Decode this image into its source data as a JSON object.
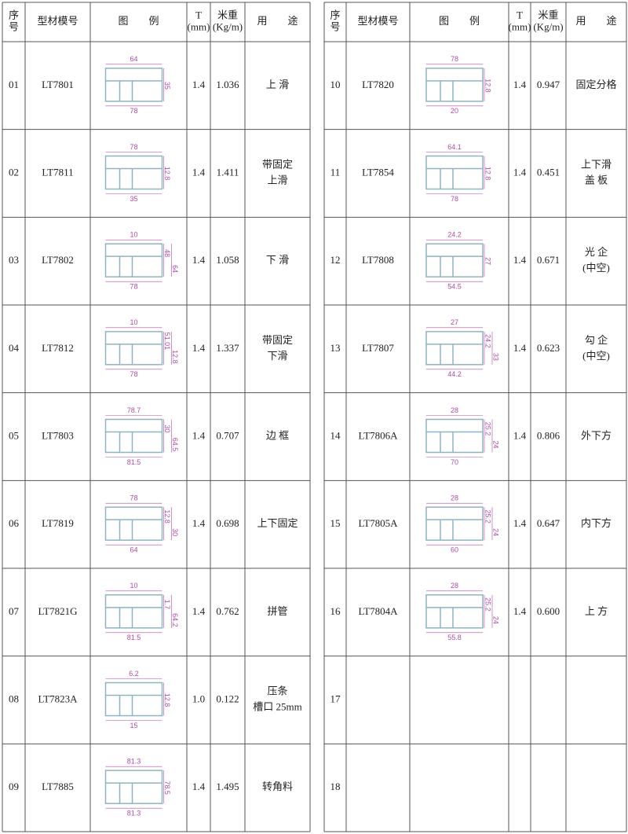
{
  "header": [
    [
      "序",
      "号"
    ],
    [
      "型材模号"
    ],
    [
      "图　　例"
    ],
    [
      "T",
      "(mm)"
    ],
    [
      "米重",
      "(Kg/m)"
    ],
    [
      "用　　途"
    ]
  ],
  "left": {
    "rows": [
      {
        "no": "01",
        "model": "LT7801",
        "t": "1.4",
        "weight": "1.036",
        "use": [
          "上 滑"
        ],
        "dims": [
          "64",
          "35",
          "78"
        ]
      },
      {
        "no": "02",
        "model": "LT7811",
        "t": "1.4",
        "weight": "1.411",
        "use": [
          "带固定",
          "上滑"
        ],
        "dims": [
          "78",
          "12.8",
          "35"
        ]
      },
      {
        "no": "03",
        "model": "LT7802",
        "t": "1.4",
        "weight": "1.058",
        "use": [
          "下 滑"
        ],
        "dims": [
          "10",
          "48",
          "64",
          "78"
        ]
      },
      {
        "no": "04",
        "model": "LT7812",
        "t": "1.4",
        "weight": "1.337",
        "use": [
          "带固定",
          "下滑"
        ],
        "dims": [
          "10",
          "51.01",
          "12.8",
          "78"
        ]
      },
      {
        "no": "05",
        "model": "LT7803",
        "t": "1.4",
        "weight": "0.707",
        "use": [
          "边 框"
        ],
        "dims": [
          "78.7",
          "30",
          "64.5",
          "81.5"
        ]
      },
      {
        "no": "06",
        "model": "LT7819",
        "t": "1.4",
        "weight": "0.698",
        "use": [
          "上下固定"
        ],
        "dims": [
          "78",
          "12.8",
          "30",
          "64"
        ]
      },
      {
        "no": "07",
        "model": "LT7821G",
        "t": "1.4",
        "weight": "0.762",
        "use": [
          "拼管"
        ],
        "dims": [
          "10",
          "1.7",
          "64.2",
          "81.5"
        ]
      },
      {
        "no": "08",
        "model": "LT7823A",
        "t": "1.0",
        "weight": "0.122",
        "use": [
          "压条",
          "槽口 25mm"
        ],
        "dims": [
          "6.2",
          "12.8",
          "15"
        ]
      },
      {
        "no": "09",
        "model": "LT7885",
        "t": "1.4",
        "weight": "1.495",
        "use": [
          "转角料"
        ],
        "dims": [
          "81.3",
          "78.5",
          "81.3"
        ]
      }
    ]
  },
  "right": {
    "rows": [
      {
        "no": "10",
        "model": "LT7820",
        "t": "1.4",
        "weight": "0.947",
        "use": [
          "固定分格"
        ],
        "dims": [
          "78",
          "12.8",
          "20"
        ]
      },
      {
        "no": "11",
        "model": "LT7854",
        "t": "1.4",
        "weight": "0.451",
        "use": [
          "上下滑",
          "盖 板"
        ],
        "dims": [
          "64.1",
          "12.8",
          "78"
        ]
      },
      {
        "no": "12",
        "model": "LT7808",
        "t": "1.4",
        "weight": "0.671",
        "use": [
          "光 企",
          "(中空)"
        ],
        "dims": [
          "24.2",
          "27",
          "54.5"
        ]
      },
      {
        "no": "13",
        "model": "LT7807",
        "t": "1.4",
        "weight": "0.623",
        "use": [
          "勾 企",
          "(中空)"
        ],
        "dims": [
          "27",
          "24.2",
          "33",
          "44.2"
        ]
      },
      {
        "no": "14",
        "model": "LT7806A",
        "t": "1.4",
        "weight": "0.806",
        "use": [
          "外下方"
        ],
        "dims": [
          "28",
          "25.2",
          "24",
          "70"
        ]
      },
      {
        "no": "15",
        "model": "LT7805A",
        "t": "1.4",
        "weight": "0.647",
        "use": [
          "内下方"
        ],
        "dims": [
          "28",
          "25.2",
          "24",
          "60"
        ]
      },
      {
        "no": "16",
        "model": "LT7804A",
        "t": "1.4",
        "weight": "0.600",
        "use": [
          "上 方"
        ],
        "dims": [
          "28",
          "25.2",
          "24",
          "55.8"
        ]
      },
      {
        "no": "17"
      },
      {
        "no": "18"
      }
    ]
  }
}
